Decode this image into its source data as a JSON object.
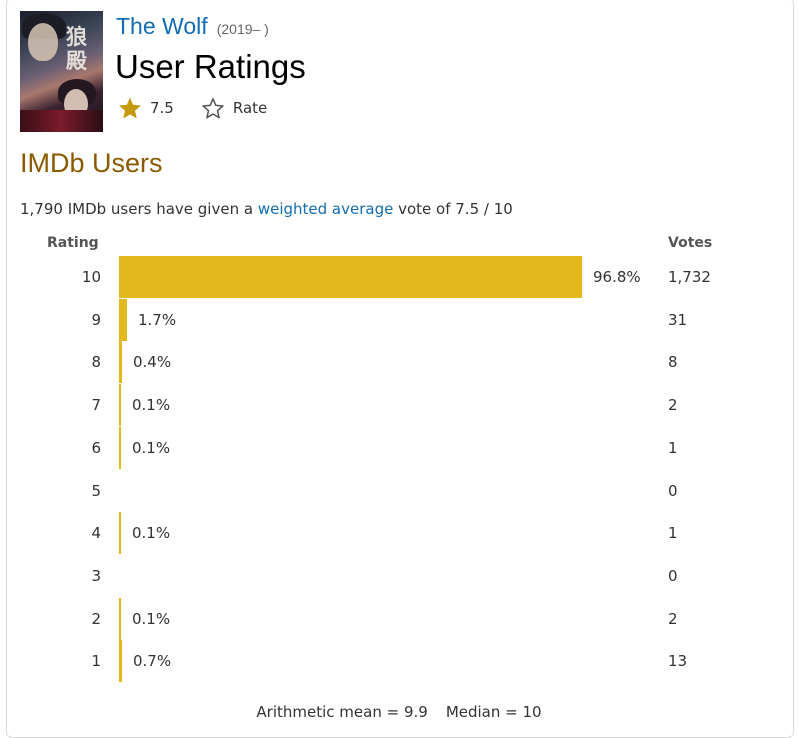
{
  "header": {
    "title": "The Wolf",
    "year": "(2019– )",
    "page_title": "User Ratings",
    "rating": "7.5",
    "rate_label": "Rate",
    "star_color": "#c59a0a"
  },
  "section": {
    "title": "IMDb Users",
    "summary_before": "1,790 IMDb users have given a ",
    "summary_link": "weighted average",
    "summary_after": " vote of 7.5 / 10"
  },
  "table": {
    "rating_header": "Rating",
    "votes_header": "Votes",
    "bar_color": "#e3b81d",
    "rows": [
      {
        "rating": "10",
        "percent": "96.8%",
        "votes": "1,732",
        "share": 0.968
      },
      {
        "rating": "9",
        "percent": "1.7%",
        "votes": "31",
        "share": 0.017
      },
      {
        "rating": "8",
        "percent": "0.4%",
        "votes": "8",
        "share": 0.004
      },
      {
        "rating": "7",
        "percent": "0.1%",
        "votes": "2",
        "share": 0.001
      },
      {
        "rating": "6",
        "percent": "0.1%",
        "votes": "1",
        "share": 0.001
      },
      {
        "rating": "5",
        "percent": "",
        "votes": "0",
        "share": 0
      },
      {
        "rating": "4",
        "percent": "0.1%",
        "votes": "1",
        "share": 0.001
      },
      {
        "rating": "3",
        "percent": "",
        "votes": "0",
        "share": 0
      },
      {
        "rating": "2",
        "percent": "0.1%",
        "votes": "2",
        "share": 0.001
      },
      {
        "rating": "1",
        "percent": "0.7%",
        "votes": "13",
        "share": 0.007
      }
    ]
  },
  "footer": {
    "mean": "Arithmetic mean = 9.9",
    "median": "Median = 10"
  }
}
